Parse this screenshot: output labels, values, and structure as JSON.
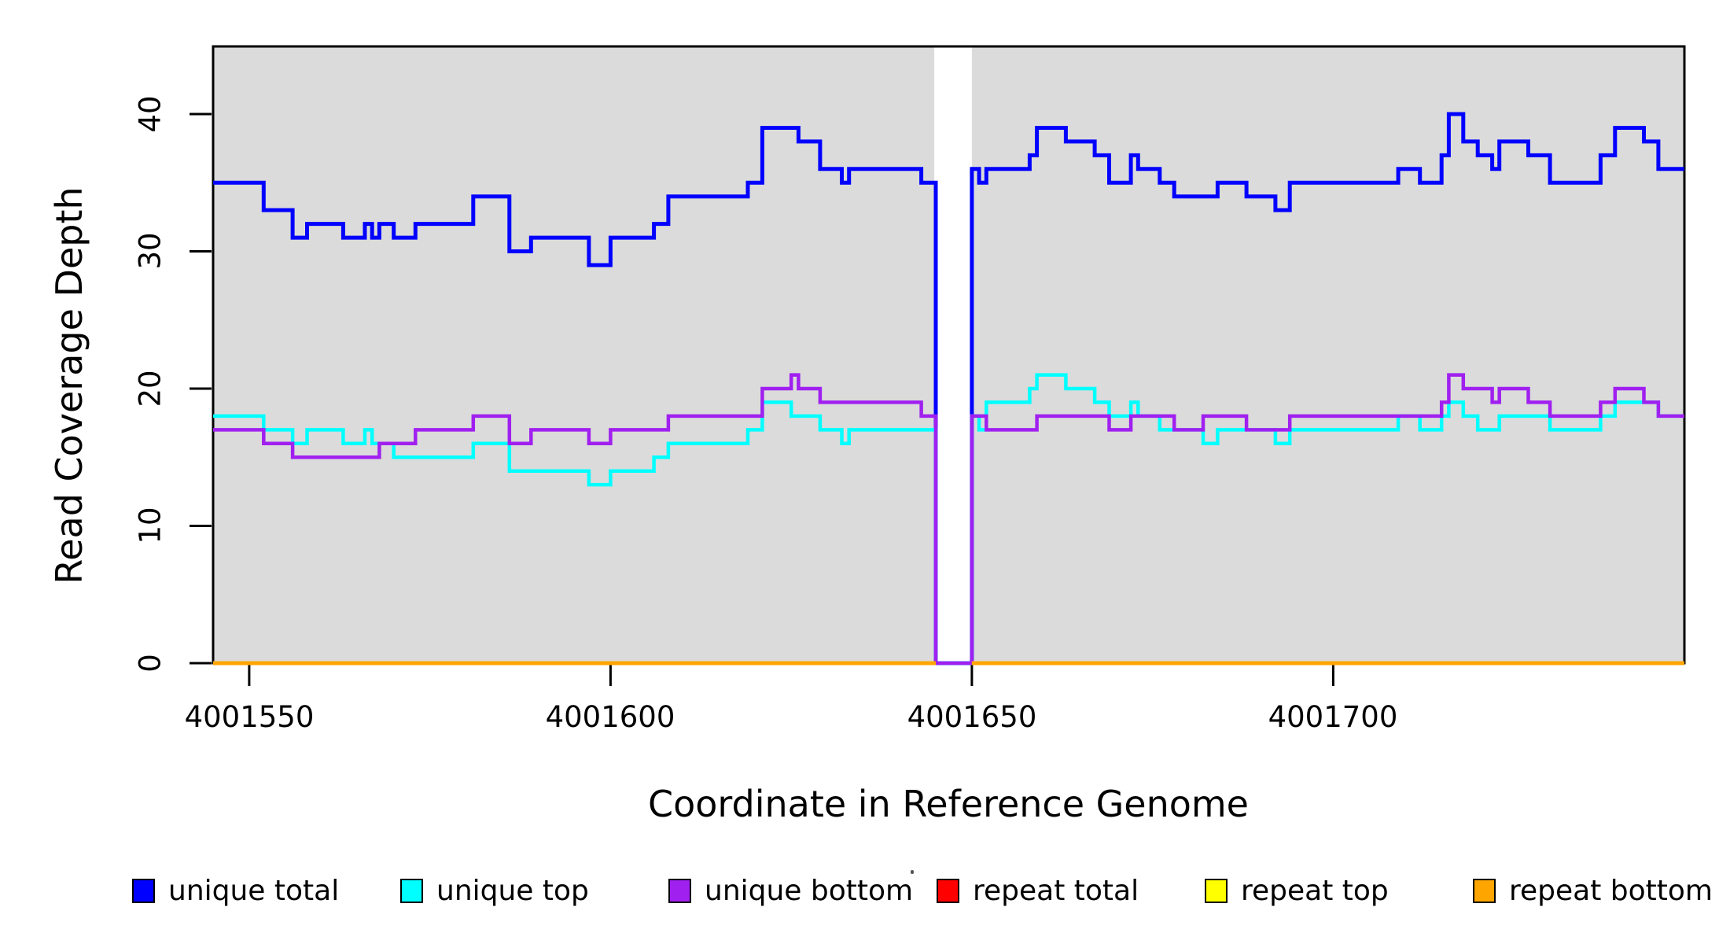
{
  "figure": {
    "x_axis_title": "Coordinate in Reference Genome",
    "y_axis_title": "Read Coverage Depth",
    "x_tick_labels": [
      "4001550",
      "4001600",
      "4001650",
      "4001700"
    ],
    "y_tick_labels": [
      "0",
      "10",
      "20",
      "30",
      "40"
    ]
  },
  "legend": {
    "items": [
      {
        "label": "unique total",
        "color": "#0000ff"
      },
      {
        "label": "unique top",
        "color": "#00ffff"
      },
      {
        "label": "unique bottom",
        "color": "#a020f0"
      },
      {
        "label": "repeat total",
        "color": "#ff0000"
      },
      {
        "label": "repeat top",
        "color": "#ffff00"
      },
      {
        "label": "repeat bottom",
        "color": "#ffa500"
      }
    ]
  },
  "chart_data": {
    "type": "step-line",
    "title": "",
    "xlabel": "Coordinate in Reference Genome",
    "ylabel": "Read Coverage Depth",
    "xlim": [
      4001545,
      4001748.6
    ],
    "ylim": [
      0,
      45
    ],
    "x_ticks": [
      4001550,
      4001600,
      4001650,
      4001700
    ],
    "y_ticks": [
      0,
      10,
      20,
      30,
      40
    ],
    "grid": false,
    "legend_position": "bottom",
    "panel_background": "#dbdbdb",
    "coverage_gap": [
      4001645,
      4001650
    ],
    "background_panels": [
      [
        4001545,
        4001644.8
      ],
      [
        4001650,
        4001748.6
      ]
    ],
    "series": [
      {
        "name": "unique total",
        "color": "#0000ff",
        "width": 5,
        "steps": [
          [
            4001545,
            35
          ],
          [
            4001552,
            33
          ],
          [
            4001556,
            31
          ],
          [
            4001558,
            32
          ],
          [
            4001563,
            31
          ],
          [
            4001566,
            32
          ],
          [
            4001567,
            31
          ],
          [
            4001568,
            32
          ],
          [
            4001570,
            31
          ],
          [
            4001573,
            32
          ],
          [
            4001581,
            34
          ],
          [
            4001586,
            30
          ],
          [
            4001589,
            31
          ],
          [
            4001597,
            29
          ],
          [
            4001600,
            31
          ],
          [
            4001606,
            32
          ],
          [
            4001608,
            34
          ],
          [
            4001619,
            35
          ],
          [
            4001621,
            39
          ],
          [
            4001626,
            38
          ],
          [
            4001629,
            36
          ],
          [
            4001632,
            35
          ],
          [
            4001633,
            36
          ],
          [
            4001643,
            35
          ],
          [
            4001645,
            0
          ],
          [
            4001650,
            36
          ],
          [
            4001651,
            35
          ],
          [
            4001652,
            36
          ],
          [
            4001658,
            37
          ],
          [
            4001659,
            39
          ],
          [
            4001663,
            38
          ],
          [
            4001667,
            37
          ],
          [
            4001669,
            35
          ],
          [
            4001672,
            37
          ],
          [
            4001673,
            36
          ],
          [
            4001676,
            35
          ],
          [
            4001678,
            34
          ],
          [
            4001684,
            35
          ],
          [
            4001688,
            34
          ],
          [
            4001692,
            33
          ],
          [
            4001694,
            35
          ],
          [
            4001709,
            36
          ],
          [
            4001712,
            35
          ],
          [
            4001715,
            37
          ],
          [
            4001716,
            40
          ],
          [
            4001718,
            38
          ],
          [
            4001720,
            37
          ],
          [
            4001722,
            36
          ],
          [
            4001723,
            38
          ],
          [
            4001727,
            37
          ],
          [
            4001730,
            35
          ],
          [
            4001737,
            37
          ],
          [
            4001739,
            39
          ],
          [
            4001743,
            38
          ],
          [
            4001745,
            36
          ],
          [
            4001748.6,
            36
          ]
        ]
      },
      {
        "name": "unique top",
        "color": "#00ffff",
        "width": 4.5,
        "steps": [
          [
            4001545,
            18
          ],
          [
            4001552,
            17
          ],
          [
            4001556,
            16
          ],
          [
            4001558,
            17
          ],
          [
            4001563,
            16
          ],
          [
            4001566,
            17
          ],
          [
            4001567,
            16
          ],
          [
            4001570,
            15
          ],
          [
            4001581,
            16
          ],
          [
            4001586,
            14
          ],
          [
            4001597,
            13
          ],
          [
            4001600,
            14
          ],
          [
            4001606,
            15
          ],
          [
            4001608,
            16
          ],
          [
            4001619,
            17
          ],
          [
            4001621,
            19
          ],
          [
            4001625,
            18
          ],
          [
            4001629,
            17
          ],
          [
            4001632,
            16
          ],
          [
            4001633,
            17
          ],
          [
            4001645,
            0
          ],
          [
            4001650,
            18
          ],
          [
            4001651,
            17
          ],
          [
            4001652,
            19
          ],
          [
            4001658,
            20
          ],
          [
            4001659,
            21
          ],
          [
            4001663,
            20
          ],
          [
            4001667,
            19
          ],
          [
            4001669,
            18
          ],
          [
            4001672,
            19
          ],
          [
            4001673,
            18
          ],
          [
            4001676,
            17
          ],
          [
            4001682,
            16
          ],
          [
            4001684,
            17
          ],
          [
            4001692,
            16
          ],
          [
            4001694,
            17
          ],
          [
            4001709,
            18
          ],
          [
            4001712,
            17
          ],
          [
            4001715,
            18
          ],
          [
            4001716,
            19
          ],
          [
            4001718,
            18
          ],
          [
            4001720,
            17
          ],
          [
            4001723,
            18
          ],
          [
            4001730,
            17
          ],
          [
            4001737,
            18
          ],
          [
            4001739,
            19
          ],
          [
            4001745,
            18
          ],
          [
            4001748.6,
            18
          ]
        ]
      },
      {
        "name": "unique bottom",
        "color": "#a020f0",
        "width": 4.5,
        "steps": [
          [
            4001545,
            17
          ],
          [
            4001552,
            16
          ],
          [
            4001556,
            15
          ],
          [
            4001568,
            16
          ],
          [
            4001573,
            17
          ],
          [
            4001581,
            18
          ],
          [
            4001586,
            16
          ],
          [
            4001589,
            17
          ],
          [
            4001597,
            16
          ],
          [
            4001600,
            17
          ],
          [
            4001608,
            18
          ],
          [
            4001621,
            20
          ],
          [
            4001625,
            21
          ],
          [
            4001626,
            20
          ],
          [
            4001629,
            19
          ],
          [
            4001643,
            18
          ],
          [
            4001645,
            0
          ],
          [
            4001650,
            18
          ],
          [
            4001652,
            17
          ],
          [
            4001659,
            18
          ],
          [
            4001669,
            17
          ],
          [
            4001672,
            18
          ],
          [
            4001678,
            17
          ],
          [
            4001682,
            18
          ],
          [
            4001688,
            17
          ],
          [
            4001694,
            18
          ],
          [
            4001715,
            19
          ],
          [
            4001716,
            21
          ],
          [
            4001718,
            20
          ],
          [
            4001722,
            19
          ],
          [
            4001723,
            20
          ],
          [
            4001727,
            19
          ],
          [
            4001730,
            18
          ],
          [
            4001737,
            19
          ],
          [
            4001739,
            20
          ],
          [
            4001743,
            19
          ],
          [
            4001745,
            18
          ],
          [
            4001748.6,
            18
          ]
        ]
      },
      {
        "name": "repeat total",
        "color": "#ff0000",
        "width": 5,
        "steps": [
          [
            4001545,
            0
          ],
          [
            4001645,
            null
          ],
          [
            4001650,
            0
          ],
          [
            4001748.6,
            0
          ]
        ]
      },
      {
        "name": "repeat top",
        "color": "#ffff00",
        "width": 5,
        "steps": [
          [
            4001545,
            0
          ],
          [
            4001645,
            null
          ],
          [
            4001650,
            0
          ],
          [
            4001748.6,
            0
          ]
        ]
      },
      {
        "name": "repeat bottom",
        "color": "#ffa500",
        "width": 5,
        "steps": [
          [
            4001545,
            0
          ],
          [
            4001645,
            null
          ],
          [
            4001650,
            0
          ],
          [
            4001748.6,
            0
          ]
        ]
      }
    ]
  }
}
